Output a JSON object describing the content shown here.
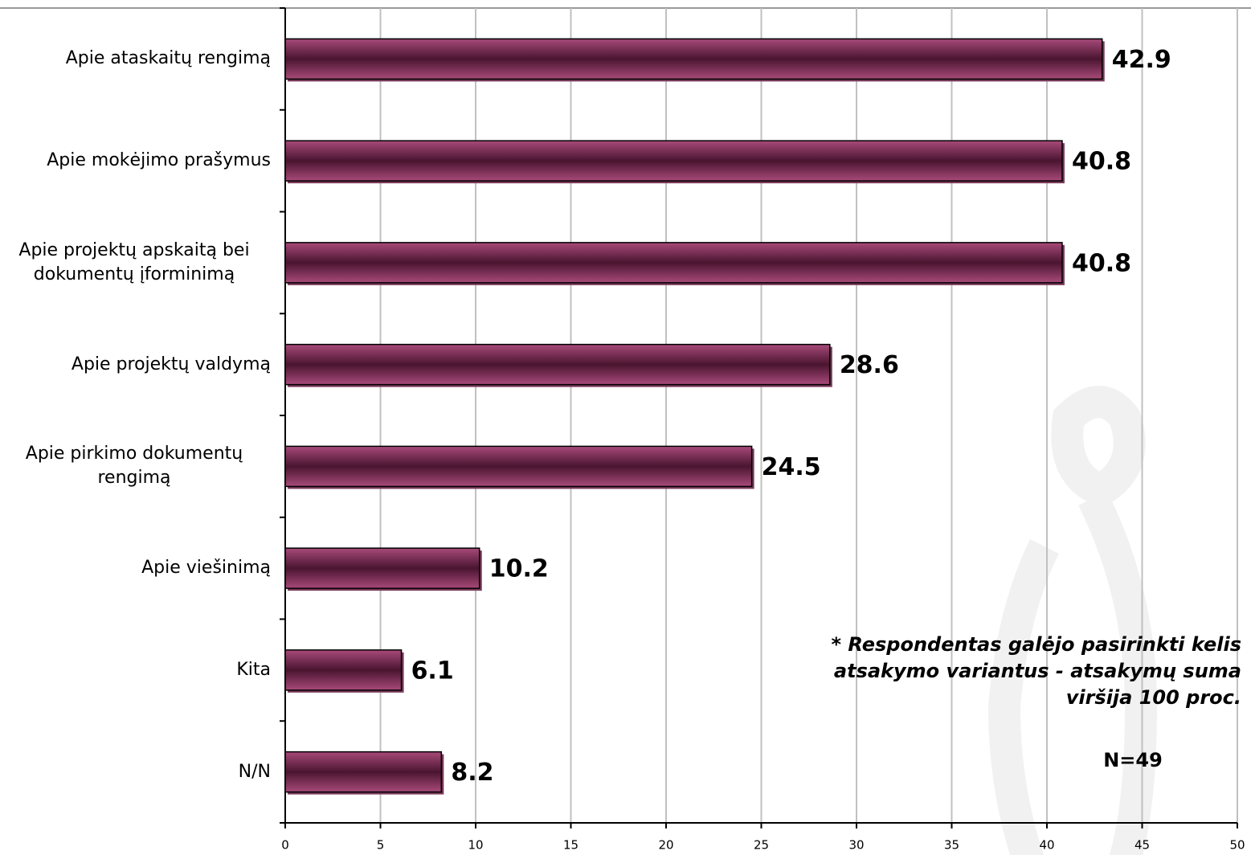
{
  "chart_data": {
    "type": "barh",
    "categories": [
      "Apie ataskaitų rengimą",
      "Apie mokėjimo prašymus",
      "Apie projektų apskaitą bei\ndokumentų įforminimą",
      "Apie projektų valdymą",
      "Apie pirkimo dokumentų\nrengimą",
      "Apie viešinimą",
      "Kita",
      "N/N"
    ],
    "values": [
      42.9,
      40.8,
      40.8,
      28.6,
      24.5,
      10.2,
      6.1,
      8.2
    ],
    "color": "#5e1f40",
    "xlim": [
      0,
      50
    ],
    "xticks": [
      0,
      5,
      10,
      15,
      20,
      25,
      30,
      35,
      40,
      45,
      50
    ],
    "grid": true,
    "annotations": [
      "* Respondentas galėjo pasirinkti kelis atsakymo variantus - atsakymų suma viršija 100 proc.",
      "N=49"
    ]
  }
}
